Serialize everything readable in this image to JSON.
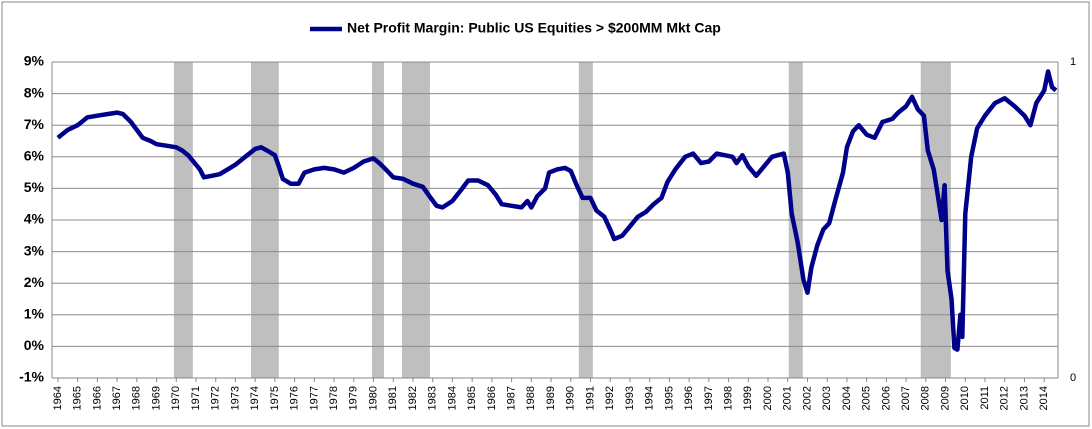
{
  "chart_data": {
    "type": "line",
    "xlim": [
      1963.7,
      2014.7
    ],
    "xticks": [
      1964,
      1965,
      1966,
      1967,
      1968,
      1969,
      1970,
      1971,
      1972,
      1973,
      1974,
      1975,
      1976,
      1977,
      1978,
      1979,
      1980,
      1981,
      1982,
      1983,
      1984,
      1985,
      1986,
      1987,
      1988,
      1989,
      1990,
      1991,
      1992,
      1993,
      1994,
      1995,
      1996,
      1997,
      1998,
      1999,
      2000,
      2001,
      2002,
      2003,
      2004,
      2005,
      2006,
      2007,
      2008,
      2009,
      2010,
      2011,
      2012,
      2013,
      2014
    ],
    "ylim": [
      -1,
      9
    ],
    "yticks": [
      {
        "value": -1,
        "label": "-1%"
      },
      {
        "value": 0,
        "label": "0%"
      },
      {
        "value": 1,
        "label": "1%"
      },
      {
        "value": 2,
        "label": "2%"
      },
      {
        "value": 3,
        "label": "3%"
      },
      {
        "value": 4,
        "label": "4%"
      },
      {
        "value": 5,
        "label": "5%"
      },
      {
        "value": 6,
        "label": "6%"
      },
      {
        "value": 7,
        "label": "7%"
      },
      {
        "value": 8,
        "label": "8%"
      },
      {
        "value": 9,
        "label": "9%"
      }
    ],
    "y2lim": [
      0,
      1
    ],
    "y2ticks": [
      0,
      1
    ],
    "grid": true,
    "legend": "top",
    "series": [
      {
        "name": "Net Profit Margin: Public US Equities > $200MM Mkt Cap",
        "color": "#00008b",
        "x": [
          1964.0,
          1964.5,
          1965.0,
          1965.5,
          1966.0,
          1966.5,
          1967.0,
          1967.3,
          1967.7,
          1968.0,
          1968.3,
          1968.7,
          1969.0,
          1969.5,
          1970.0,
          1970.3,
          1970.6,
          1971.0,
          1971.2,
          1971.4,
          1971.8,
          1972.2,
          1972.6,
          1973.0,
          1973.5,
          1974.0,
          1974.3,
          1974.6,
          1975.0,
          1975.2,
          1975.4,
          1975.8,
          1976.2,
          1976.5,
          1977.0,
          1977.5,
          1978.0,
          1978.5,
          1979.0,
          1979.5,
          1980.0,
          1980.3,
          1980.7,
          1981.0,
          1981.5,
          1982.0,
          1982.5,
          1982.9,
          1983.2,
          1983.5,
          1984.0,
          1984.5,
          1984.8,
          1985.3,
          1985.8,
          1986.2,
          1986.5,
          1987.0,
          1987.5,
          1987.8,
          1988.0,
          1988.3,
          1988.7,
          1988.9,
          1989.3,
          1989.7,
          1990.0,
          1990.3,
          1990.6,
          1991.0,
          1991.3,
          1991.7,
          1992.0,
          1992.2,
          1992.6,
          1993.0,
          1993.4,
          1993.8,
          1994.2,
          1994.6,
          1994.9,
          1995.3,
          1995.8,
          1996.2,
          1996.6,
          1997.0,
          1997.4,
          1997.8,
          1998.2,
          1998.4,
          1998.7,
          1999.0,
          1999.4,
          1999.8,
          2000.2,
          2000.5,
          2000.8,
          2001.0,
          2001.2,
          2001.5,
          2001.8,
          2002.0,
          2002.2,
          2002.5,
          2002.8,
          2003.1,
          2003.4,
          2003.8,
          2004.0,
          2004.3,
          2004.6,
          2005.0,
          2005.4,
          2005.8,
          2006.3,
          2006.6,
          2007.0,
          2007.3,
          2007.6,
          2007.9,
          2008.1,
          2008.4,
          2008.6,
          2008.8,
          2008.95,
          2009.1,
          2009.3,
          2009.45,
          2009.6,
          2009.75,
          2009.85,
          2010.0,
          2010.3,
          2010.6,
          2011.0,
          2011.5,
          2012.0,
          2012.5,
          2013.0,
          2013.3,
          2013.6,
          2014.0,
          2014.2,
          2014.4,
          2014.6
        ],
        "values": [
          6.6,
          6.85,
          7.0,
          7.25,
          7.3,
          7.35,
          7.4,
          7.35,
          7.1,
          6.85,
          6.6,
          6.5,
          6.4,
          6.35,
          6.3,
          6.2,
          6.05,
          5.75,
          5.6,
          5.35,
          5.4,
          5.45,
          5.6,
          5.75,
          6.0,
          6.25,
          6.3,
          6.2,
          6.05,
          5.7,
          5.3,
          5.15,
          5.15,
          5.5,
          5.6,
          5.65,
          5.6,
          5.5,
          5.65,
          5.85,
          5.95,
          5.8,
          5.55,
          5.35,
          5.3,
          5.15,
          5.05,
          4.7,
          4.45,
          4.4,
          4.6,
          5.0,
          5.25,
          5.25,
          5.1,
          4.8,
          4.5,
          4.45,
          4.4,
          4.6,
          4.4,
          4.75,
          5.0,
          5.5,
          5.6,
          5.65,
          5.55,
          5.1,
          4.7,
          4.7,
          4.3,
          4.1,
          3.7,
          3.4,
          3.5,
          3.8,
          4.1,
          4.25,
          4.5,
          4.7,
          5.2,
          5.6,
          6.0,
          6.1,
          5.8,
          5.85,
          6.1,
          6.05,
          6.0,
          5.8,
          6.05,
          5.7,
          5.4,
          5.7,
          6.0,
          6.05,
          6.1,
          5.5,
          4.2,
          3.3,
          2.1,
          1.7,
          2.5,
          3.2,
          3.7,
          3.9,
          4.6,
          5.5,
          6.3,
          6.8,
          7.0,
          6.7,
          6.6,
          7.1,
          7.2,
          7.4,
          7.6,
          7.9,
          7.5,
          7.3,
          6.2,
          5.6,
          4.8,
          4.0,
          5.1,
          2.4,
          1.5,
          -0.05,
          -0.1,
          1.0,
          0.3,
          4.2,
          6.0,
          6.9,
          7.3,
          7.7,
          7.85,
          7.6,
          7.3,
          7.0,
          7.7,
          8.1,
          8.7,
          8.2,
          8.1
        ]
      }
    ],
    "recessions": {
      "axis": "y2",
      "value": 1,
      "color": "#bfbfbf",
      "spans": [
        [
          1969.88,
          1970.84
        ],
        [
          1973.79,
          1975.2
        ],
        [
          1979.92,
          1980.53
        ],
        [
          1981.44,
          1982.86
        ],
        [
          1990.41,
          1991.12
        ],
        [
          2001.05,
          2001.76
        ],
        [
          2007.74,
          2009.27
        ]
      ]
    }
  }
}
